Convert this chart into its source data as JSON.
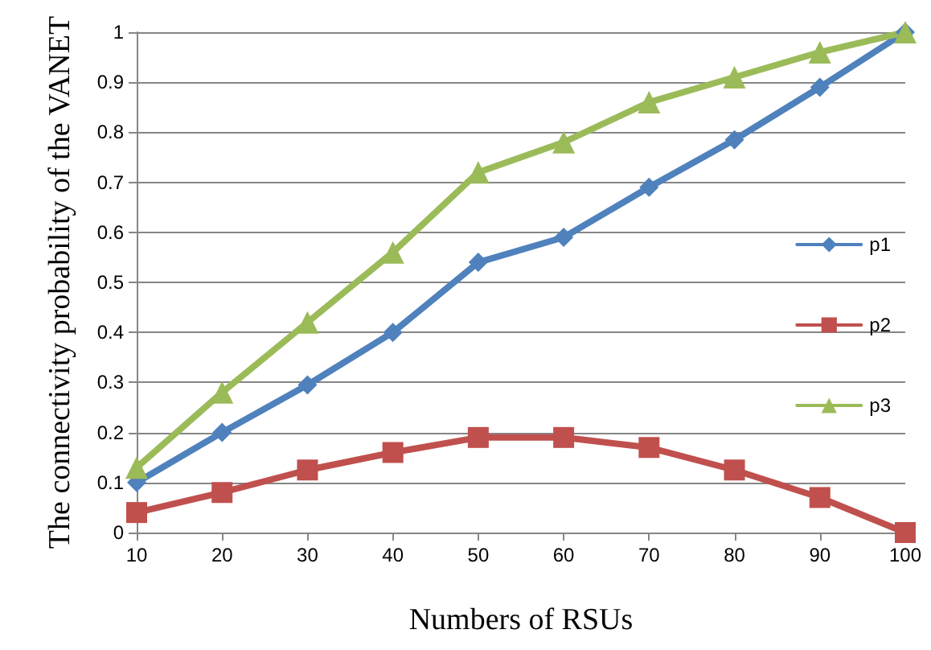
{
  "chart_data": {
    "type": "line",
    "xlabel": "Numbers of RSUs",
    "ylabel": "The connectivity probability of the VANET",
    "categories": [
      "10",
      "20",
      "30",
      "40",
      "50",
      "60",
      "70",
      "80",
      "90",
      "100"
    ],
    "series": [
      {
        "name": "p1",
        "color": "#4f81bd",
        "marker": "diamond",
        "values": [
          0.1,
          0.2,
          0.295,
          0.4,
          0.54,
          0.59,
          0.69,
          0.785,
          0.89,
          1.0
        ]
      },
      {
        "name": "p2",
        "color": "#c0504d",
        "marker": "square",
        "values": [
          0.04,
          0.08,
          0.125,
          0.16,
          0.19,
          0.19,
          0.17,
          0.125,
          0.07,
          0.0
        ]
      },
      {
        "name": "p3",
        "color": "#9bbb59",
        "marker": "triangle",
        "values": [
          0.13,
          0.28,
          0.42,
          0.56,
          0.72,
          0.78,
          0.86,
          0.91,
          0.96,
          1.0
        ]
      }
    ],
    "ylim": [
      0,
      1
    ],
    "yticks": [
      0,
      0.1,
      0.2,
      0.3,
      0.4,
      0.5,
      0.6,
      0.7,
      0.8,
      0.9,
      1
    ],
    "grid": "y",
    "legend": "right",
    "line_style": "solid"
  }
}
